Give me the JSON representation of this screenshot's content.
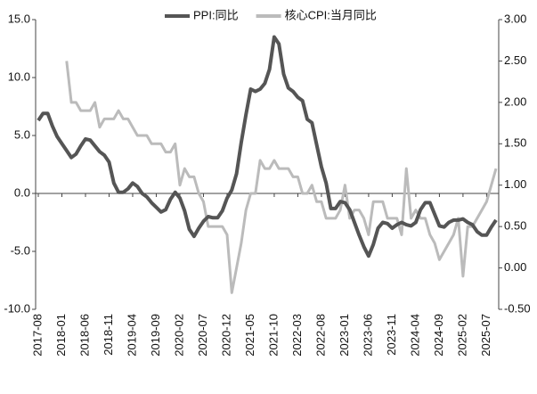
{
  "chart_data": {
    "type": "line",
    "categories": [
      "2017-08",
      null,
      null,
      null,
      null,
      "2018-01",
      null,
      null,
      null,
      null,
      "2018-06",
      null,
      null,
      null,
      null,
      "2018-11",
      null,
      null,
      null,
      null,
      "2019-04",
      null,
      null,
      null,
      null,
      "2019-09",
      null,
      null,
      null,
      null,
      "2020-02",
      null,
      null,
      null,
      null,
      "2020-07",
      null,
      null,
      null,
      null,
      "2020-12",
      null,
      null,
      null,
      null,
      "2021-05",
      null,
      null,
      null,
      null,
      "2021-10",
      null,
      null,
      null,
      null,
      "2022-03",
      null,
      null,
      null,
      null,
      "2022-08",
      null,
      null,
      null,
      null,
      "2023-01",
      null,
      null,
      null,
      null,
      "2023-06",
      null,
      null,
      null,
      null,
      "2023-11",
      null,
      null,
      null,
      null,
      "2024-04",
      null,
      null,
      null,
      null,
      "2024-09",
      null,
      null,
      null,
      null,
      "2025-02",
      null,
      null,
      null,
      null,
      "2025-07",
      null,
      null
    ],
    "series": [
      {
        "name": "PPI:同比",
        "color": "#555555",
        "values": [
          6.3,
          6.9,
          6.9,
          5.8,
          4.9,
          4.3,
          3.7,
          3.1,
          3.4,
          4.1,
          4.7,
          4.6,
          4.1,
          3.6,
          3.3,
          2.7,
          0.9,
          0.1,
          0.1,
          0.4,
          0.9,
          0.6,
          0.0,
          -0.3,
          -0.8,
          -1.2,
          -1.6,
          -1.4,
          -0.5,
          0.1,
          -0.4,
          -1.5,
          -3.1,
          -3.7,
          -3.0,
          -2.4,
          -2.0,
          -2.1,
          -2.1,
          -1.5,
          -0.4,
          0.3,
          1.7,
          4.4,
          6.8,
          9.0,
          8.8,
          9.0,
          9.5,
          10.7,
          13.5,
          12.9,
          10.3,
          9.1,
          8.8,
          8.3,
          8.0,
          6.4,
          6.1,
          4.2,
          2.3,
          0.9,
          -1.3,
          -1.3,
          -0.7,
          -0.8,
          -1.4,
          -2.5,
          -3.6,
          -4.6,
          -5.4,
          -4.4,
          -3.0,
          -2.5,
          -2.6,
          -3.0,
          -2.7,
          -2.5,
          -2.7,
          -2.8,
          -2.5,
          -1.4,
          -0.8,
          -0.8,
          -1.8,
          -2.8,
          -2.9,
          -2.5,
          -2.3,
          -2.3,
          -2.2,
          -2.5,
          -2.7,
          -3.3,
          -3.6,
          -3.6,
          -2.9,
          -2.3
        ]
      },
      {
        "name": "核心CPI:当月同比",
        "color": "#bbbbbb",
        "axis": "y2",
        "values": [
          null,
          null,
          null,
          null,
          null,
          null,
          2.5,
          2.0,
          2.0,
          1.9,
          1.9,
          1.9,
          2.0,
          1.7,
          1.8,
          1.8,
          1.8,
          1.9,
          1.8,
          1.8,
          1.7,
          1.6,
          1.6,
          1.6,
          1.5,
          1.5,
          1.5,
          1.4,
          1.4,
          1.5,
          1.0,
          1.2,
          1.1,
          1.1,
          0.9,
          0.8,
          0.5,
          0.5,
          0.5,
          0.5,
          0.4,
          -0.3,
          0.0,
          0.3,
          0.7,
          0.9,
          0.9,
          1.3,
          1.2,
          1.2,
          1.3,
          1.2,
          1.2,
          1.2,
          1.1,
          1.1,
          0.9,
          0.9,
          1.0,
          0.8,
          0.8,
          0.6,
          0.6,
          0.6,
          0.7,
          1.0,
          0.6,
          0.7,
          0.7,
          0.6,
          0.4,
          0.8,
          0.8,
          0.8,
          0.6,
          0.6,
          0.6,
          0.4,
          1.2,
          0.6,
          0.7,
          0.6,
          0.6,
          0.4,
          0.3,
          0.1,
          0.2,
          0.3,
          0.4,
          0.6,
          -0.1,
          0.5,
          0.5,
          0.6,
          0.7,
          0.8,
          1.0,
          1.2
        ]
      }
    ],
    "ylim": [
      -10,
      15
    ],
    "yticks": [
      {
        "value": -10,
        "label": "-10.0"
      },
      {
        "value": -5,
        "label": "-5.0"
      },
      {
        "value": 0,
        "label": "0.0"
      },
      {
        "value": 5,
        "label": "5.0"
      },
      {
        "value": 10,
        "label": "10.0"
      },
      {
        "value": 15,
        "label": "15.0"
      }
    ],
    "y2lim": [
      -0.5,
      3
    ],
    "y2ticks": [
      {
        "value": -0.5,
        "label": "-0.50"
      },
      {
        "value": 0,
        "label": "0.00"
      },
      {
        "value": 0.5,
        "label": "0.50"
      },
      {
        "value": 1,
        "label": "1.00"
      },
      {
        "value": 1.5,
        "label": "1.50"
      },
      {
        "value": 2,
        "label": "2.00"
      },
      {
        "value": 2.5,
        "label": "2.50"
      },
      {
        "value": 3,
        "label": "3.00"
      }
    ],
    "grid": false,
    "legend": "top"
  }
}
